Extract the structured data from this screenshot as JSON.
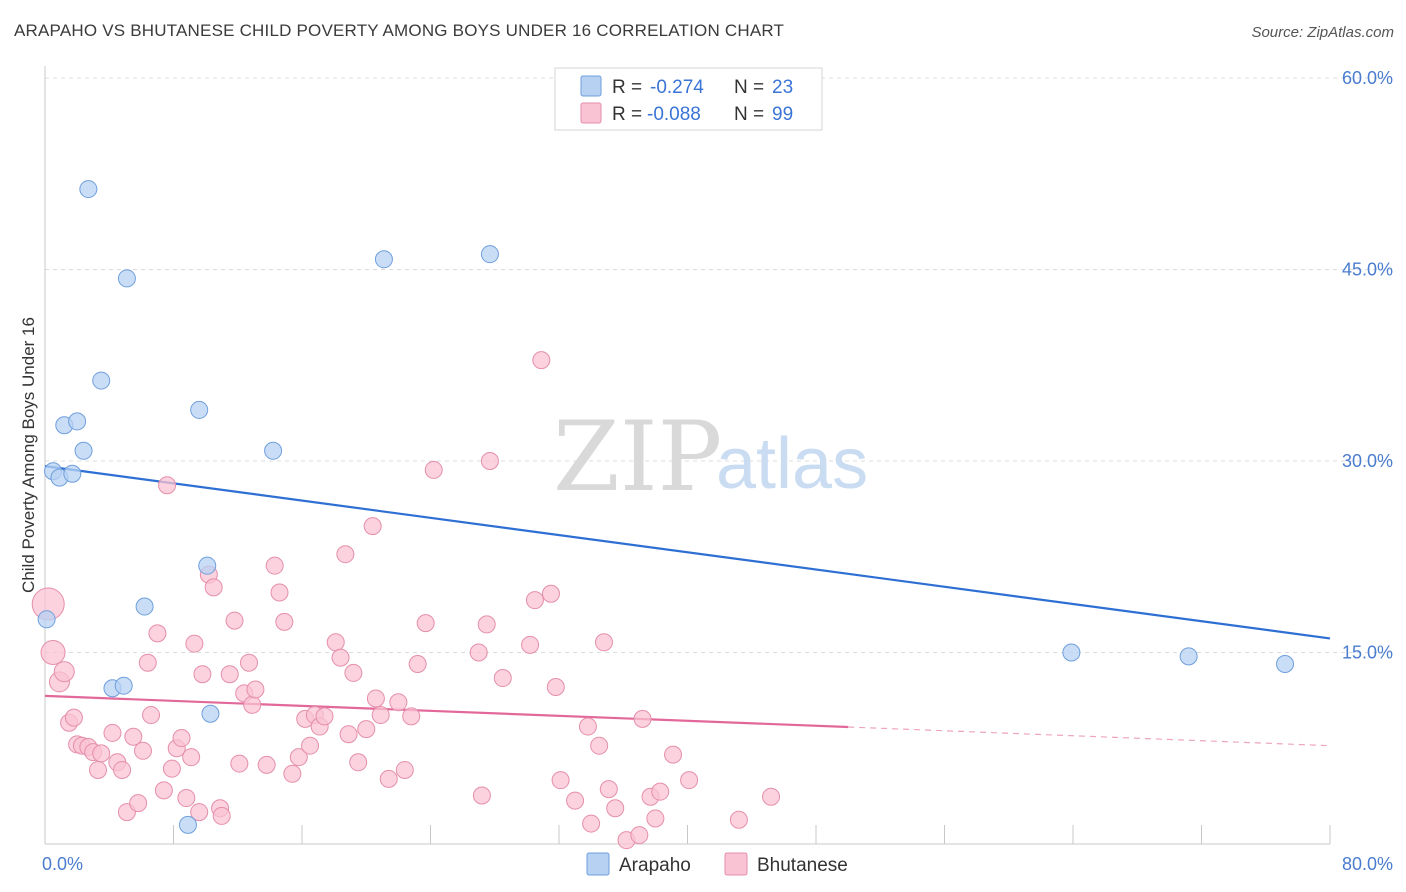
{
  "title": "ARAPAHO VS BHUTANESE CHILD POVERTY AMONG BOYS UNDER 16 CORRELATION CHART",
  "source": "Source: ZipAtlas.com",
  "watermark": {
    "zip": "ZIP",
    "atlas": "atlas"
  },
  "legend": {
    "rows": [
      {
        "r_label": "R =",
        "r_value": "-0.274",
        "n_label": "N =",
        "n_value": "23"
      },
      {
        "r_label": "R =",
        "r_value": "-0.088",
        "n_label": "N =",
        "n_value": "99"
      }
    ]
  },
  "colors": {
    "arapaho_fill": "#b7d1f3",
    "arapaho_stroke": "#6f9fdc",
    "arapaho_line": "#2e6fd3",
    "bhutanese_fill": "#f9c3d3",
    "bhutanese_stroke": "#e58fab",
    "bhutanese_line": "#e2689a",
    "axis_text": "#4a7ccf"
  },
  "chart_data": {
    "type": "scatter",
    "title": "ARAPAHO VS BHUTANESE CHILD POVERTY AMONG BOYS UNDER 16 CORRELATION CHART",
    "xlabel": "",
    "ylabel": "Child Poverty Among Boys Under 16",
    "xlim": [
      0,
      80
    ],
    "ylim": [
      0,
      60
    ],
    "x_tick_labels": [
      "0.0%",
      "80.0%"
    ],
    "y_ticks": [
      15,
      30,
      45,
      60
    ],
    "y_tick_labels": [
      "15.0%",
      "30.0%",
      "45.0%",
      "60.0%"
    ],
    "grid": true,
    "legend_position": "top-center",
    "series": [
      {
        "name": "Arapaho",
        "r": -0.274,
        "n": 23,
        "trend": {
          "x": [
            0,
            80
          ],
          "y": [
            29.6,
            16.1
          ],
          "dashed_from_x": null
        },
        "points": [
          [
            0.1,
            17.6
          ],
          [
            0.5,
            29.2
          ],
          [
            0.9,
            28.7
          ],
          [
            1.2,
            32.8
          ],
          [
            1.7,
            29.0
          ],
          [
            2.0,
            33.1
          ],
          [
            2.4,
            30.8
          ],
          [
            2.7,
            51.3
          ],
          [
            3.5,
            36.3
          ],
          [
            4.2,
            12.2
          ],
          [
            4.9,
            12.4
          ],
          [
            5.1,
            44.3
          ],
          [
            6.2,
            18.6
          ],
          [
            8.9,
            1.5
          ],
          [
            9.6,
            34.0
          ],
          [
            10.1,
            21.8
          ],
          [
            10.3,
            10.2
          ],
          [
            14.2,
            30.8
          ],
          [
            21.1,
            45.8
          ],
          [
            27.7,
            46.2
          ],
          [
            63.9,
            15.0
          ],
          [
            71.2,
            14.7
          ],
          [
            77.2,
            14.1
          ]
        ]
      },
      {
        "name": "Bhutanese",
        "r": -0.088,
        "n": 99,
        "trend": {
          "x": [
            0,
            80
          ],
          "y": [
            11.6,
            7.7
          ],
          "dashed_from_x": 50
        },
        "points": [
          [
            0.2,
            18.8
          ],
          [
            0.5,
            15.0
          ],
          [
            0.9,
            12.7
          ],
          [
            1.2,
            13.5
          ],
          [
            1.5,
            9.5
          ],
          [
            1.8,
            9.9
          ],
          [
            2.0,
            7.8
          ],
          [
            2.3,
            7.7
          ],
          [
            2.7,
            7.6
          ],
          [
            3.0,
            7.2
          ],
          [
            3.3,
            5.8
          ],
          [
            3.5,
            7.1
          ],
          [
            4.2,
            8.7
          ],
          [
            4.5,
            6.4
          ],
          [
            4.8,
            5.8
          ],
          [
            5.1,
            2.5
          ],
          [
            5.5,
            8.4
          ],
          [
            5.8,
            3.2
          ],
          [
            6.1,
            7.3
          ],
          [
            6.4,
            14.2
          ],
          [
            6.6,
            10.1
          ],
          [
            7.0,
            16.5
          ],
          [
            7.4,
            4.2
          ],
          [
            7.6,
            28.1
          ],
          [
            7.9,
            5.9
          ],
          [
            8.2,
            7.5
          ],
          [
            8.5,
            8.3
          ],
          [
            8.8,
            3.6
          ],
          [
            9.1,
            6.8
          ],
          [
            9.3,
            15.7
          ],
          [
            9.6,
            2.5
          ],
          [
            9.8,
            13.3
          ],
          [
            10.2,
            21.1
          ],
          [
            10.5,
            20.1
          ],
          [
            10.9,
            2.8
          ],
          [
            11.0,
            2.2
          ],
          [
            11.5,
            13.3
          ],
          [
            11.8,
            17.5
          ],
          [
            12.1,
            6.3
          ],
          [
            12.4,
            11.8
          ],
          [
            12.7,
            14.2
          ],
          [
            12.9,
            10.9
          ],
          [
            13.1,
            12.1
          ],
          [
            13.8,
            6.2
          ],
          [
            14.3,
            21.8
          ],
          [
            14.6,
            19.7
          ],
          [
            14.9,
            17.4
          ],
          [
            15.4,
            5.5
          ],
          [
            15.8,
            6.8
          ],
          [
            16.2,
            9.8
          ],
          [
            16.5,
            7.7
          ],
          [
            16.8,
            10.1
          ],
          [
            17.1,
            9.2
          ],
          [
            17.4,
            10.0
          ],
          [
            18.1,
            15.8
          ],
          [
            18.4,
            14.6
          ],
          [
            18.7,
            22.7
          ],
          [
            18.9,
            8.6
          ],
          [
            19.2,
            13.4
          ],
          [
            19.5,
            6.4
          ],
          [
            20.0,
            9.0
          ],
          [
            20.4,
            24.9
          ],
          [
            20.6,
            11.4
          ],
          [
            20.9,
            10.1
          ],
          [
            21.4,
            5.1
          ],
          [
            22.0,
            11.1
          ],
          [
            22.4,
            5.8
          ],
          [
            22.8,
            10.0
          ],
          [
            23.2,
            14.1
          ],
          [
            23.7,
            17.3
          ],
          [
            24.2,
            29.3
          ],
          [
            27.0,
            15.0
          ],
          [
            27.2,
            3.8
          ],
          [
            27.5,
            17.2
          ],
          [
            27.7,
            30.0
          ],
          [
            28.5,
            13.0
          ],
          [
            30.2,
            15.6
          ],
          [
            30.5,
            19.1
          ],
          [
            30.9,
            37.9
          ],
          [
            31.5,
            19.6
          ],
          [
            31.8,
            12.3
          ],
          [
            32.1,
            5.0
          ],
          [
            33.0,
            3.4
          ],
          [
            33.8,
            9.2
          ],
          [
            34.0,
            1.6
          ],
          [
            34.5,
            7.7
          ],
          [
            34.8,
            15.8
          ],
          [
            35.1,
            4.3
          ],
          [
            35.5,
            2.8
          ],
          [
            36.2,
            0.3
          ],
          [
            37.0,
            0.7
          ],
          [
            37.2,
            9.8
          ],
          [
            37.7,
            3.7
          ],
          [
            38.0,
            2.0
          ],
          [
            38.3,
            4.1
          ],
          [
            39.1,
            7.0
          ],
          [
            40.1,
            5.0
          ],
          [
            43.2,
            1.9
          ],
          [
            45.2,
            3.7
          ]
        ]
      }
    ]
  },
  "bottom_legend": [
    {
      "label": "Arapaho"
    },
    {
      "label": "Bhutanese"
    }
  ]
}
